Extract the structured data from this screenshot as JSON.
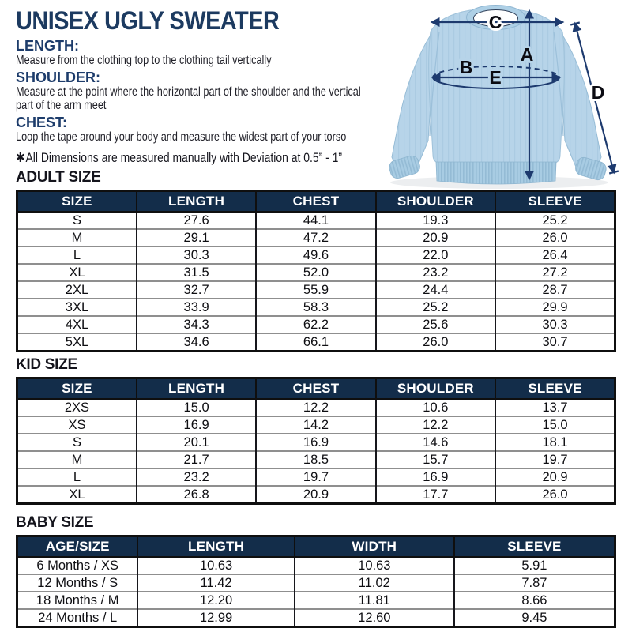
{
  "page": {
    "title": "UNISEX UGLY SWEATER",
    "definitions": [
      {
        "term": "LENGTH:",
        "lines": [
          "Measure from the clothing top to the clothing tail vertically"
        ]
      },
      {
        "term": "SHOULDER:",
        "lines": [
          "Measure at the point where the horizontal part of the shoulder and the vertical",
          "part of the arm meet"
        ]
      },
      {
        "term": "CHEST:",
        "lines": [
          "Loop the tape around your body and measure the widest part of your torso"
        ]
      }
    ],
    "disclaimer_star": "✱",
    "disclaimer_text": "All Dimensions are measured manually with Deviation at 0.5” - 1”"
  },
  "diagram": {
    "labels": {
      "a": "A",
      "b": "B",
      "c": "C",
      "d": "D",
      "e": "E"
    },
    "colors": {
      "sweater_blue": "#b7d4e9",
      "ribbing_blue": "#a8cce3",
      "arrow_navy": "#1d3a6e",
      "label_black": "#0b0b12"
    }
  },
  "colors": {
    "title_navy": "#1c3a60",
    "table_header_bg": "#132d4a",
    "table_header_text": "#ffffff",
    "table_border": "#0f0f0f",
    "row_divider": "#8f8f8f"
  },
  "tables": [
    {
      "heading": "ADULT SIZE",
      "columns": [
        "SIZE",
        "LENGTH",
        "CHEST",
        "SHOULDER",
        "SLEEVE"
      ],
      "rows": [
        [
          "S",
          "27.6",
          "44.1",
          "19.3",
          "25.2"
        ],
        [
          "M",
          "29.1",
          "47.2",
          "20.9",
          "26.0"
        ],
        [
          "L",
          "30.3",
          "49.6",
          "22.0",
          "26.4"
        ],
        [
          "XL",
          "31.5",
          "52.0",
          "23.2",
          "27.2"
        ],
        [
          "2XL",
          "32.7",
          "55.9",
          "24.4",
          "28.7"
        ],
        [
          "3XL",
          "33.9",
          "58.3",
          "25.2",
          "29.9"
        ],
        [
          "4XL",
          "34.3",
          "62.2",
          "25.6",
          "30.3"
        ],
        [
          "5XL",
          "34.6",
          "66.1",
          "26.0",
          "30.7"
        ]
      ]
    },
    {
      "heading": "KID SIZE",
      "columns": [
        "SIZE",
        "LENGTH",
        "CHEST",
        "SHOULDER",
        "SLEEVE"
      ],
      "rows": [
        [
          "2XS",
          "15.0",
          "12.2",
          "10.6",
          "13.7"
        ],
        [
          "XS",
          "16.9",
          "14.2",
          "12.2",
          "15.0"
        ],
        [
          "S",
          "20.1",
          "16.9",
          "14.6",
          "18.1"
        ],
        [
          "M",
          "21.7",
          "18.5",
          "15.7",
          "19.7"
        ],
        [
          "L",
          "23.2",
          "19.7",
          "16.9",
          "20.9"
        ],
        [
          "XL",
          "26.8",
          "20.9",
          "17.7",
          "26.0"
        ]
      ]
    },
    {
      "heading": "BABY SIZE",
      "columns": [
        "AGE/SIZE",
        "LENGTH",
        "WIDTH",
        "SLEEVE"
      ],
      "rows": [
        [
          "6 Months / XS",
          "10.63",
          "10.63",
          "5.91"
        ],
        [
          "12 Months / S",
          "11.42",
          "11.02",
          "7.87"
        ],
        [
          "18 Months / M",
          "12.20",
          "11.81",
          "8.66"
        ],
        [
          "24 Months / L",
          "12.99",
          "12.60",
          "9.45"
        ]
      ]
    }
  ]
}
